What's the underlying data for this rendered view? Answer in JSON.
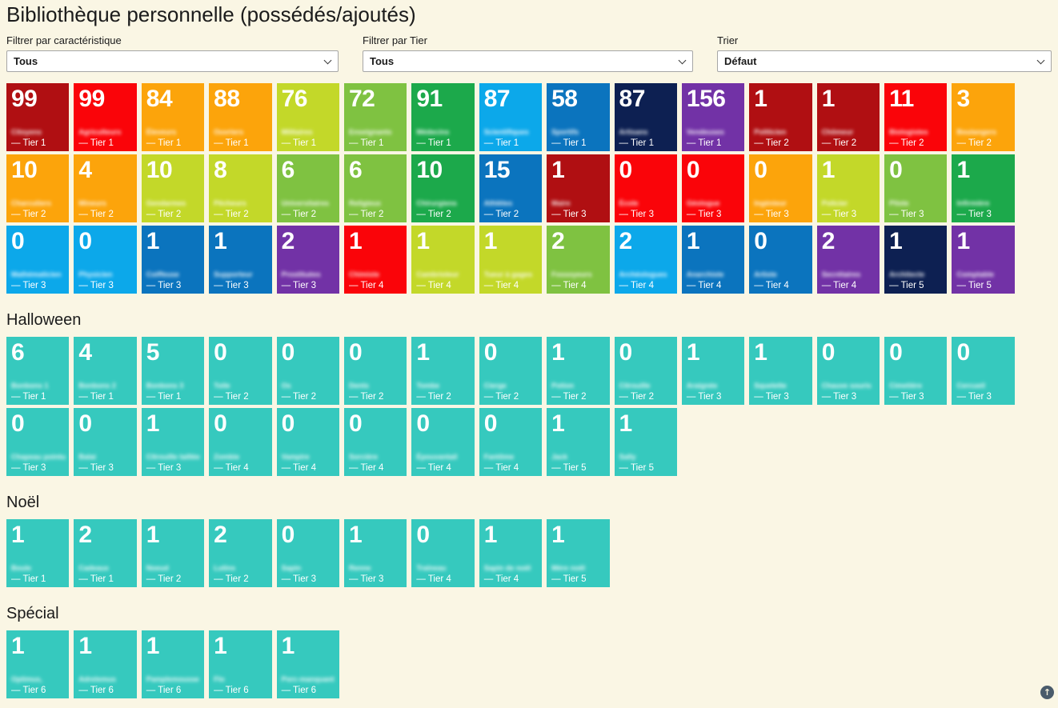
{
  "page": {
    "title": "Bibliothèque personnelle (possédés/ajoutés)",
    "background": "#FAF6E4"
  },
  "filters": [
    {
      "label": "Filtrer par caractéristique",
      "value": "Tous"
    },
    {
      "label": "Filtrer par Tier",
      "value": "Tous"
    },
    {
      "label": "Trier",
      "value": "Défaut"
    }
  ],
  "scroll_top_icon": "↑",
  "palette": {
    "darkred": "#B00F12",
    "red": "#FA0409",
    "orange": "#FCA40B",
    "yellowgreen": "#C3D829",
    "lightgreen": "#7FC241",
    "green": "#1CA94B",
    "lightblue": "#0CA8EA",
    "blue": "#0B74BE",
    "navy": "#0D2052",
    "purple": "#7232A6",
    "teal": "#36C9BE"
  },
  "sections": [
    {
      "title": "",
      "card_color": "teal",
      "cards": [
        {
          "count": "99",
          "name": "Citoyens",
          "tier": "— Tier 1",
          "color": "darkred"
        },
        {
          "count": "99",
          "name": "Agriculteurs",
          "tier": "— Tier 1",
          "color": "red"
        },
        {
          "count": "84",
          "name": "Éleveurs",
          "tier": "— Tier 1",
          "color": "orange"
        },
        {
          "count": "88",
          "name": "Ouvriers",
          "tier": "— Tier 1",
          "color": "orange"
        },
        {
          "count": "76",
          "name": "Militaires",
          "tier": "— Tier 1",
          "color": "yellowgreen"
        },
        {
          "count": "72",
          "name": "Enseignants",
          "tier": "— Tier 1",
          "color": "lightgreen"
        },
        {
          "count": "91",
          "name": "Médecins",
          "tier": "— Tier 1",
          "color": "green"
        },
        {
          "count": "87",
          "name": "Scientifiques",
          "tier": "— Tier 1",
          "color": "lightblue"
        },
        {
          "count": "58",
          "name": "Sportifs",
          "tier": "— Tier 1",
          "color": "blue"
        },
        {
          "count": "87",
          "name": "Artisans",
          "tier": "— Tier 1",
          "color": "navy"
        },
        {
          "count": "156",
          "name": "Vendeuses",
          "tier": "— Tier 1",
          "color": "purple"
        },
        {
          "count": "1",
          "name": "Politicien",
          "tier": "— Tier 2",
          "color": "darkred"
        },
        {
          "count": "1",
          "name": "Chômeur",
          "tier": "— Tier 2",
          "color": "darkred"
        },
        {
          "count": "11",
          "name": "Biologistes",
          "tier": "— Tier 2",
          "color": "red"
        },
        {
          "count": "3",
          "name": "Boulangers",
          "tier": "— Tier 2",
          "color": "orange"
        },
        {
          "count": "10",
          "name": "Charcutiers",
          "tier": "— Tier 2",
          "color": "orange"
        },
        {
          "count": "4",
          "name": "Mineurs",
          "tier": "— Tier 2",
          "color": "orange"
        },
        {
          "count": "10",
          "name": "Gendarmes",
          "tier": "— Tier 2",
          "color": "yellowgreen"
        },
        {
          "count": "8",
          "name": "Pêcheurs",
          "tier": "— Tier 2",
          "color": "yellowgreen"
        },
        {
          "count": "6",
          "name": "Universitaires",
          "tier": "— Tier 2",
          "color": "lightgreen"
        },
        {
          "count": "6",
          "name": "Religieux",
          "tier": "— Tier 2",
          "color": "lightgreen"
        },
        {
          "count": "10",
          "name": "Chirurgiens",
          "tier": "— Tier 2",
          "color": "green"
        },
        {
          "count": "15",
          "name": "Athlètes",
          "tier": "— Tier 2",
          "color": "blue"
        },
        {
          "count": "1",
          "name": "Maire",
          "tier": "— Tier 3",
          "color": "darkred"
        },
        {
          "count": "0",
          "name": "École",
          "tier": "— Tier 3",
          "color": "red"
        },
        {
          "count": "0",
          "name": "Géologue",
          "tier": "— Tier 3",
          "color": "red"
        },
        {
          "count": "0",
          "name": "Ingénieur",
          "tier": "— Tier 3",
          "color": "orange"
        },
        {
          "count": "1",
          "name": "Policier",
          "tier": "— Tier 3",
          "color": "yellowgreen"
        },
        {
          "count": "0",
          "name": "Pilote",
          "tier": "— Tier 3",
          "color": "lightgreen"
        },
        {
          "count": "1",
          "name": "Infirmière",
          "tier": "— Tier 3",
          "color": "green"
        },
        {
          "count": "0",
          "name": "Mathématicien",
          "tier": "— Tier 3",
          "color": "lightblue"
        },
        {
          "count": "0",
          "name": "Physicien",
          "tier": "— Tier 3",
          "color": "lightblue"
        },
        {
          "count": "1",
          "name": "Coiffeuse",
          "tier": "— Tier 3",
          "color": "blue"
        },
        {
          "count": "1",
          "name": "Supporteur",
          "tier": "— Tier 3",
          "color": "blue"
        },
        {
          "count": "2",
          "name": "Prostituées",
          "tier": "— Tier 3",
          "color": "purple"
        },
        {
          "count": "1",
          "name": "Chimiste",
          "tier": "— Tier 4",
          "color": "red"
        },
        {
          "count": "1",
          "name": "Cambrioleur",
          "tier": "— Tier 4",
          "color": "yellowgreen"
        },
        {
          "count": "1",
          "name": "Tueur à gages",
          "tier": "— Tier 4",
          "color": "yellowgreen"
        },
        {
          "count": "2",
          "name": "Fossoyeurs",
          "tier": "— Tier 4",
          "color": "lightgreen"
        },
        {
          "count": "2",
          "name": "Archéologues",
          "tier": "— Tier 4",
          "color": "lightblue"
        },
        {
          "count": "1",
          "name": "Anarchiste",
          "tier": "— Tier 4",
          "color": "blue"
        },
        {
          "count": "0",
          "name": "Artiste",
          "tier": "— Tier 4",
          "color": "blue"
        },
        {
          "count": "2",
          "name": "Secrétaires",
          "tier": "— Tier 4",
          "color": "purple"
        },
        {
          "count": "1",
          "name": "Architecte",
          "tier": "— Tier 5",
          "color": "navy"
        },
        {
          "count": "1",
          "name": "Comptable",
          "tier": "— Tier 5",
          "color": "purple"
        }
      ]
    },
    {
      "title": "Halloween",
      "card_color": "teal",
      "cards": [
        {
          "count": "6",
          "name": "Bonbons 1",
          "tier": "— Tier 1"
        },
        {
          "count": "4",
          "name": "Bonbons 2",
          "tier": "— Tier 1"
        },
        {
          "count": "5",
          "name": "Bonbons 3",
          "tier": "— Tier 1"
        },
        {
          "count": "0",
          "name": "Toile",
          "tier": "— Tier 2"
        },
        {
          "count": "0",
          "name": "Os",
          "tier": "— Tier 2"
        },
        {
          "count": "0",
          "name": "Dents",
          "tier": "— Tier 2"
        },
        {
          "count": "1",
          "name": "Tombe",
          "tier": "— Tier 2"
        },
        {
          "count": "0",
          "name": "Cierge",
          "tier": "— Tier 2"
        },
        {
          "count": "1",
          "name": "Potion",
          "tier": "— Tier 2"
        },
        {
          "count": "0",
          "name": "Citrouille",
          "tier": "— Tier 2"
        },
        {
          "count": "1",
          "name": "Araignée",
          "tier": "— Tier 3"
        },
        {
          "count": "1",
          "name": "Squelette",
          "tier": "— Tier 3"
        },
        {
          "count": "0",
          "name": "Chauve souris",
          "tier": "— Tier 3"
        },
        {
          "count": "0",
          "name": "Cimetière",
          "tier": "— Tier 3"
        },
        {
          "count": "0",
          "name": "Cercueil",
          "tier": "— Tier 3"
        },
        {
          "count": "0",
          "name": "Chapeau pointu",
          "tier": "— Tier 3"
        },
        {
          "count": "0",
          "name": "Balai",
          "tier": "— Tier 3"
        },
        {
          "count": "1",
          "name": "Citrouille taillée",
          "tier": "— Tier 3"
        },
        {
          "count": "0",
          "name": "Zombie",
          "tier": "— Tier 4"
        },
        {
          "count": "0",
          "name": "Vampire",
          "tier": "— Tier 4"
        },
        {
          "count": "0",
          "name": "Sorcière",
          "tier": "— Tier 4"
        },
        {
          "count": "0",
          "name": "Épouvantail",
          "tier": "— Tier 4"
        },
        {
          "count": "0",
          "name": "Fantôme",
          "tier": "— Tier 4"
        },
        {
          "count": "1",
          "name": "Jack",
          "tier": "— Tier 5"
        },
        {
          "count": "1",
          "name": "Sally",
          "tier": "— Tier 5"
        }
      ]
    },
    {
      "title": "Noël",
      "card_color": "teal",
      "cards": [
        {
          "count": "1",
          "name": "Boule",
          "tier": "— Tier 1"
        },
        {
          "count": "2",
          "name": "Cadeaux",
          "tier": "— Tier 1"
        },
        {
          "count": "1",
          "name": "Noeud",
          "tier": "— Tier 2"
        },
        {
          "count": "2",
          "name": "Lutins",
          "tier": "— Tier 2"
        },
        {
          "count": "0",
          "name": "Sapin",
          "tier": "— Tier 3"
        },
        {
          "count": "1",
          "name": "Renne",
          "tier": "— Tier 3"
        },
        {
          "count": "0",
          "name": "Traîneau",
          "tier": "— Tier 4"
        },
        {
          "count": "1",
          "name": "Sapin de noël",
          "tier": "— Tier 4"
        },
        {
          "count": "1",
          "name": "Mère noël",
          "tier": "— Tier 5"
        }
      ]
    },
    {
      "title": "Spécial",
      "card_color": "teal",
      "cards": [
        {
          "count": "1",
          "name": "Optimus,",
          "tier": "— Tier 6"
        },
        {
          "count": "1",
          "name": "Adrelemus",
          "tier": "— Tier 6"
        },
        {
          "count": "1",
          "name": "Pamplemousse",
          "tier": "— Tier 6"
        },
        {
          "count": "1",
          "name": "Flo",
          "tier": "— Tier 6"
        },
        {
          "count": "1",
          "name": "Porc-manquant",
          "tier": "— Tier 6"
        }
      ]
    }
  ]
}
